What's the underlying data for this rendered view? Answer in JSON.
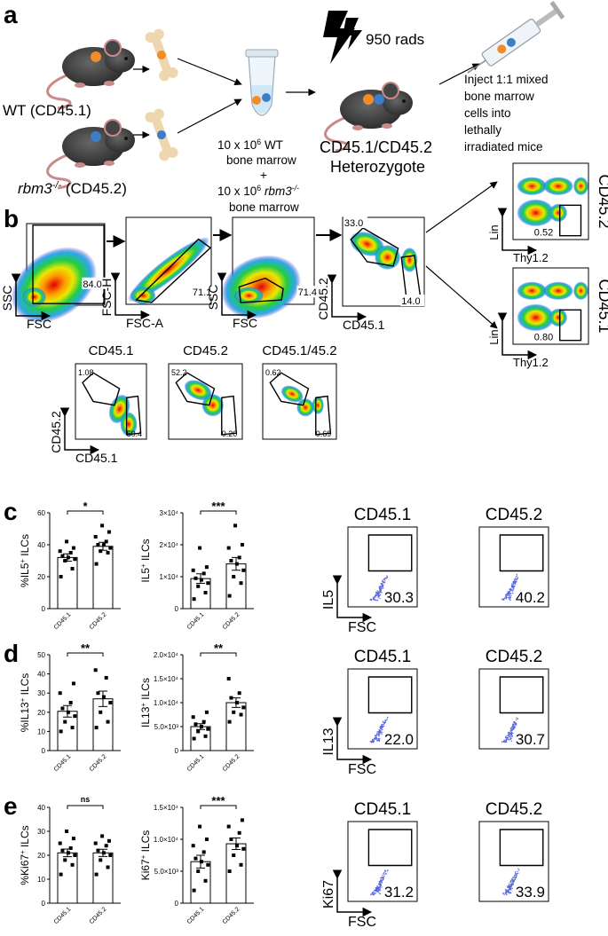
{
  "panels": {
    "a": {
      "label": "a",
      "donor_wt": "WT (CD45.1)",
      "donor_ko": {
        "gene": "rbm3",
        "sup": "-/-",
        "rest": " (CD45.2)"
      },
      "irradiation": "950 rads",
      "mix": {
        "line1": {
          "pre": "10 x 10",
          "sup": "6",
          "post": "  WT"
        },
        "line2": "bone marrow",
        "plus": "+",
        "line3": {
          "pre": "10 x 10",
          "sup": "6",
          "gene": "  rbm3",
          "gsup": "-/-"
        },
        "line4": "bone marrow"
      },
      "recipient": [
        "CD45.1/CD45.2",
        "Heterozygote"
      ],
      "injection": [
        "Inject 1:1 mixed",
        "bone marrow",
        "cells into",
        "lethally",
        "irradiated mice"
      ]
    },
    "b": {
      "label": "b",
      "gating": [
        {
          "y": "SSC",
          "x": "FSC",
          "gates": [
            "84.0"
          ]
        },
        {
          "y": "FSC-H",
          "x": "FSC-A",
          "gates": [
            "71.1"
          ]
        },
        {
          "y": "SSC",
          "x": "FSC",
          "gates": [
            "71.4"
          ]
        },
        {
          "y": "CD45.2",
          "x": "CD45.1",
          "gates": [
            "33.0",
            "14.0"
          ]
        }
      ],
      "ilc": [
        {
          "name": "CD45.2",
          "y": "Lin",
          "x": "Thy1.2",
          "gate": "0.52"
        },
        {
          "name": "CD45.1",
          "y": "Lin",
          "x": "Thy1.2",
          "gate": "0.80"
        }
      ],
      "chimerism": {
        "y": "CD45.2",
        "x": "CD45.1",
        "plots": [
          {
            "title": "CD45.1",
            "gates": [
              "1.08",
              "50.4"
            ]
          },
          {
            "title": "CD45.2",
            "gates": [
              "52.2",
              "0.20"
            ]
          },
          {
            "title": "CD45.1/45.2",
            "gates": [
              "0.62",
              "0.69"
            ]
          }
        ]
      }
    },
    "c": {
      "label": "c",
      "charts": [
        {
          "type": "bar",
          "ylabel": {
            "pre": "%IL5",
            "sup": "+",
            "post": " ILCs"
          },
          "categories": [
            "CD45.1",
            "CD45.2"
          ],
          "values": [
            32,
            39
          ],
          "errors": [
            2.3,
            2.5
          ],
          "points": [
            [
              20,
              25,
              30,
              31,
              32,
              33,
              35,
              36,
              38,
              42
            ],
            [
              28,
              35,
              36,
              38,
              40,
              40,
              42,
              45,
              48,
              52
            ]
          ],
          "ylim": [
            0,
            60
          ],
          "yticks": [
            0,
            20,
            40,
            60
          ],
          "significance": "*"
        },
        {
          "type": "bar",
          "ylabel": {
            "pre": "IL5",
            "sup": "+",
            "post": " ILCs"
          },
          "categories": [
            "CD45.1",
            "CD45.2"
          ],
          "values": [
            9400,
            14000
          ],
          "errors": [
            1500,
            2000
          ],
          "points": [
            [
              3000,
              5000,
              7000,
              8000,
              9000,
              9500,
              11000,
              12000,
              13000,
              19000
            ],
            [
              4000,
              8000,
              10000,
              12000,
              14000,
              15000,
              16000,
              19000,
              20000,
              26000
            ]
          ],
          "ylim": [
            0,
            30000
          ],
          "yticks": [
            0,
            {
              "value": 10000,
              "label": "1×10⁴"
            },
            {
              "value": 20000,
              "label": "2×10⁴"
            },
            {
              "value": 30000,
              "label": "3×10⁴"
            }
          ],
          "significance": "***"
        }
      ],
      "flow": {
        "y": "IL5",
        "x": "FSC",
        "plots": [
          {
            "title": "CD45.1",
            "gate": "30.3"
          },
          {
            "title": "CD45.2",
            "gate": "40.2"
          }
        ]
      }
    },
    "d": {
      "label": "d",
      "charts": [
        {
          "type": "bar",
          "ylabel": {
            "pre": "%IL13",
            "sup": "+",
            "post": " ILCs"
          },
          "categories": [
            "CD45.1",
            "CD45.2"
          ],
          "values": [
            20.5,
            27
          ],
          "errors": [
            3,
            4
          ],
          "points": [
            [
              10,
              12,
              15,
              18,
              20,
              22,
              25,
              30,
              35
            ],
            [
              12,
              15,
              20,
              25,
              28,
              30,
              38,
              42
            ]
          ],
          "ylim": [
            0,
            50
          ],
          "yticks": [
            0,
            10,
            20,
            30,
            40,
            50
          ],
          "significance": "**"
        },
        {
          "type": "bar",
          "ylabel": {
            "pre": "IL13",
            "sup": "+",
            "post": " ILCs"
          },
          "categories": [
            "CD45.1",
            "CD45.2"
          ],
          "values": [
            5000,
            10000
          ],
          "errors": [
            600,
            1000
          ],
          "points": [
            [
              2500,
              3000,
              4000,
              4500,
              5000,
              5500,
              6000,
              7000,
              8000
            ],
            [
              6000,
              7500,
              8000,
              9000,
              10000,
              11000,
              12000,
              15000
            ]
          ],
          "ylim": [
            0,
            20000
          ],
          "yticks": [
            0,
            {
              "value": 5000,
              "label": "5.0×10³"
            },
            {
              "value": 10000,
              "label": "1.0×10⁴"
            },
            {
              "value": 15000,
              "label": "1.5×10⁴"
            },
            {
              "value": 20000,
              "label": "2.0×10⁴"
            }
          ],
          "significance": "**"
        }
      ],
      "flow": {
        "y": "IL13",
        "x": "FSC",
        "plots": [
          {
            "title": "CD45.1",
            "gate": "22.0"
          },
          {
            "title": "CD45.2",
            "gate": "30.7"
          }
        ]
      }
    },
    "e": {
      "label": "e",
      "charts": [
        {
          "type": "bar",
          "ylabel": {
            "pre": "%Ki67",
            "sup": "+",
            "post": " ILCs"
          },
          "categories": [
            "CD45.1",
            "CD45.2"
          ],
          "values": [
            21,
            21
          ],
          "errors": [
            1.6,
            1.5
          ],
          "points": [
            [
              12,
              16,
              18,
              20,
              21,
              22,
              23,
              25,
              27,
              30
            ],
            [
              12,
              15,
              18,
              20,
              21,
              22,
              24,
              25,
              26,
              28
            ]
          ],
          "ylim": [
            0,
            40
          ],
          "yticks": [
            0,
            10,
            20,
            30,
            40
          ],
          "significance": "ns"
        },
        {
          "type": "bar",
          "ylabel": {
            "pre": "Ki67",
            "sup": "+",
            "post": " ILCs"
          },
          "categories": [
            "CD45.1",
            "CD45.2"
          ],
          "values": [
            6500,
            9300
          ],
          "errors": [
            1000,
            900
          ],
          "points": [
            [
              2000,
              3500,
              5000,
              6000,
              6500,
              7000,
              8000,
              9000,
              10000,
              12000
            ],
            [
              5000,
              6000,
              7500,
              8500,
              9000,
              10000,
              11000,
              12000,
              13000
            ]
          ],
          "ylim": [
            0,
            15000
          ],
          "yticks": [
            0,
            {
              "value": 5000,
              "label": "5.0×10³"
            },
            {
              "value": 10000,
              "label": "1.0×10⁴"
            },
            {
              "value": 15000,
              "label": "1.5×10⁴"
            }
          ],
          "significance": "***"
        }
      ],
      "flow": {
        "y": "Ki67",
        "x": "FSC",
        "plots": [
          {
            "title": "CD45.1",
            "gate": "31.2"
          },
          {
            "title": "CD45.2",
            "gate": "33.9"
          }
        ]
      }
    }
  }
}
